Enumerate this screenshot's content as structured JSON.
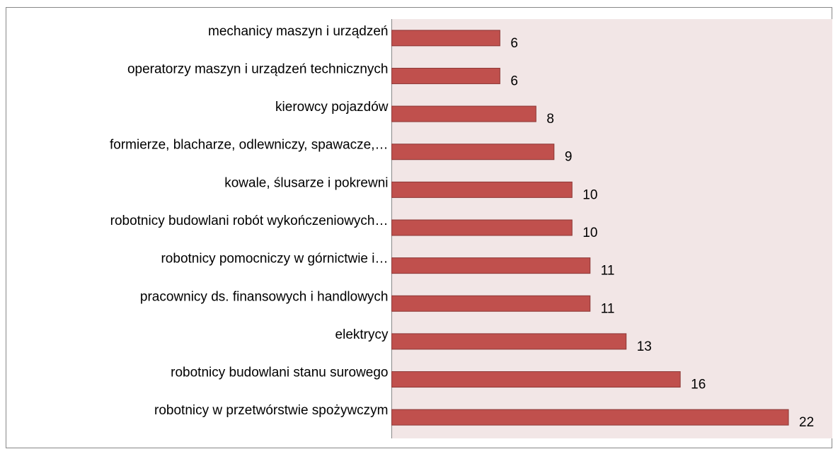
{
  "chart_data": {
    "type": "bar",
    "orientation": "horizontal",
    "categories": [
      "mechanicy maszyn i urządzeń",
      "operatorzy maszyn i urządzeń technicznych",
      "kierowcy pojazdów",
      "formierze, blacharze, odlewniczy, spawacze,…",
      "kowale, ślusarze i pokrewni",
      "robotnicy budowlani robót wykończeniowych…",
      "robotnicy pomocniczy w górnictwie i…",
      "pracownicy ds. finansowych i handlowych",
      "elektrycy",
      "robotnicy budowlani stanu surowego",
      "robotnicy w przetwórstwie spożywczym"
    ],
    "values": [
      6,
      6,
      8,
      9,
      10,
      10,
      11,
      11,
      13,
      16,
      22
    ],
    "color": "#c0504d",
    "xlim": [
      0,
      24
    ]
  }
}
